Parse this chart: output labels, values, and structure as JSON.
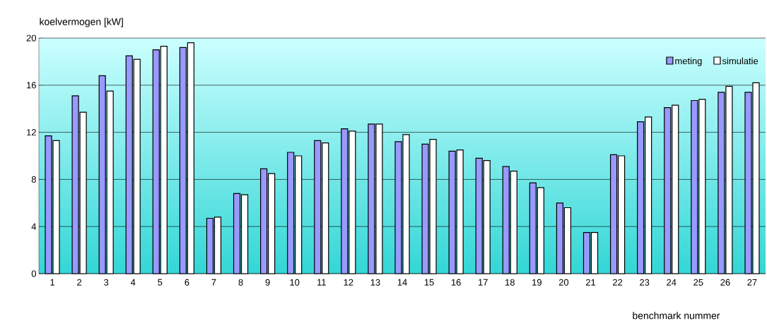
{
  "chart_data": {
    "type": "bar",
    "xlabel": "benchmark nummer",
    "ylabel": "koelvermogen [kW]",
    "categories": [
      "1",
      "2",
      "3",
      "4",
      "5",
      "6",
      "7",
      "8",
      "9",
      "10",
      "11",
      "12",
      "13",
      "14",
      "15",
      "16",
      "17",
      "18",
      "19",
      "20",
      "21",
      "22",
      "23",
      "24",
      "25",
      "26",
      "27"
    ],
    "series": [
      {
        "name": "meting",
        "color": "#9999ff",
        "values": [
          11.7,
          15.1,
          16.8,
          18.5,
          19.0,
          19.2,
          4.7,
          6.8,
          8.9,
          10.3,
          11.3,
          12.3,
          12.7,
          11.2,
          11.0,
          10.4,
          9.8,
          9.1,
          7.7,
          6.0,
          3.5,
          10.1,
          12.9,
          14.1,
          14.7,
          15.4,
          15.4
        ]
      },
      {
        "name": "simulatie",
        "color": "#ffffff",
        "values": [
          11.3,
          13.7,
          15.5,
          18.2,
          19.3,
          19.6,
          4.8,
          6.7,
          8.5,
          10.0,
          11.1,
          12.1,
          12.7,
          11.8,
          11.4,
          10.5,
          9.6,
          8.7,
          7.3,
          5.6,
          3.5,
          10.0,
          13.3,
          14.3,
          14.8,
          15.9,
          16.2
        ]
      }
    ],
    "ylim": [
      0,
      20
    ],
    "yticks": [
      0,
      4,
      8,
      12,
      16,
      20
    ],
    "grid": "y",
    "legend": "top right"
  }
}
